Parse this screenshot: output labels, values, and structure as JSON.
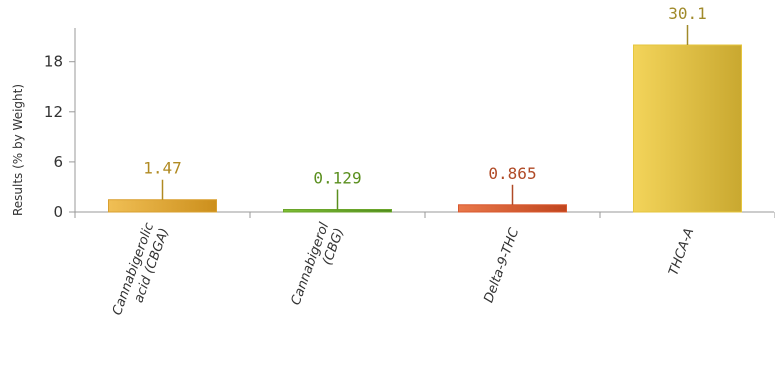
{
  "chart_data": {
    "type": "bar",
    "categories": [
      [
        "Cannabigerolic",
        "acid (CBGA)"
      ],
      [
        "Cannabigerol",
        "(CBG)"
      ],
      [
        "Delta-9-THC"
      ],
      [
        "THCA-A"
      ]
    ],
    "values": [
      1.47,
      0.129,
      0.865,
      30.1
    ],
    "data_labels": [
      "1.47",
      "0.129",
      "0.865",
      "30.1"
    ],
    "colors": [
      "#d9a030",
      "#6aa52a",
      "#d9582f",
      "#e6c63c"
    ],
    "label_colors": [
      "#b08a22",
      "#5a8f1e",
      "#b04a26",
      "#a08a2a"
    ],
    "ylabel": "Results (% by Weight)",
    "yticks": [
      0,
      6,
      12,
      18
    ],
    "ylim": [
      0,
      20
    ],
    "grid": false,
    "legend": "none"
  }
}
